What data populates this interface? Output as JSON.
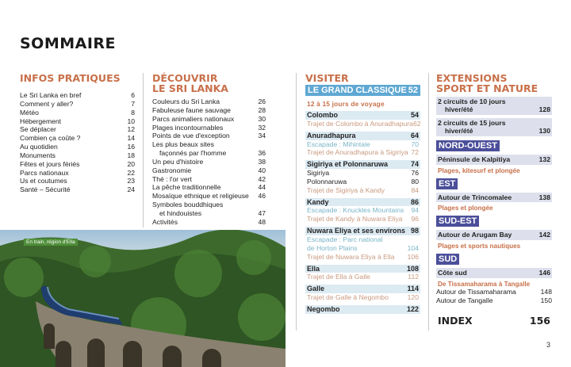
{
  "title": "SOMMAIRE",
  "infos": {
    "heading": "INFOS PRATIQUES",
    "items": [
      {
        "label": "Le Sri Lanka en bref",
        "page": "6"
      },
      {
        "label": "Comment y aller?",
        "page": "7"
      },
      {
        "label": "Météo",
        "page": "8"
      },
      {
        "label": "Hébergement",
        "page": "10"
      },
      {
        "label": "Se déplacer",
        "page": "12"
      },
      {
        "label": "Combien ça coûte ?",
        "page": "14"
      },
      {
        "label": "Au quotidien",
        "page": "16"
      },
      {
        "label": "Monuments",
        "page": "18"
      },
      {
        "label": "Fêtes et jours fériés",
        "page": "20"
      },
      {
        "label": "Parcs nationaux",
        "page": "22"
      },
      {
        "label": "Us et coutumes",
        "page": "23"
      },
      {
        "label": "Santé – Sécurité",
        "page": "24"
      }
    ]
  },
  "decouvrir": {
    "heading_1": "DÉCOUVRIR",
    "heading_2": "LE SRI LANKA",
    "items": [
      {
        "label": "Couleurs du Sri Lanka",
        "page": "26"
      },
      {
        "label": "Fabuleuse faune sauvage",
        "page": "28"
      },
      {
        "label": "Parcs animaliers nationaux",
        "page": "30"
      },
      {
        "label": "Plages incontournables",
        "page": "32"
      },
      {
        "label": "Points de vue d'exception",
        "page": "34"
      },
      {
        "label": "Les plus beaux sites",
        "page": ""
      },
      {
        "label": "façonnés par l'homme",
        "page": "36",
        "indent": true
      },
      {
        "label": "Un peu d'histoire",
        "page": "38"
      },
      {
        "label": "Gastronomie",
        "page": "40"
      },
      {
        "label": "Thé : l'or vert",
        "page": "42"
      },
      {
        "label": "La pêche traditionnelle",
        "page": "44"
      },
      {
        "label": "Mosaïque ethnique et religieuse",
        "page": "46"
      },
      {
        "label": "Symboles bouddhiques",
        "page": ""
      },
      {
        "label": "et hindouistes",
        "page": "47",
        "indent": true
      },
      {
        "label": "Activités",
        "page": "48"
      }
    ]
  },
  "visiter": {
    "heading": "VISITER",
    "band": {
      "label": "LE GRAND CLASSIQUE",
      "page": "52"
    },
    "subtitle": "12 à 15 jours de voyage",
    "blocks": [
      {
        "label": "Colombo",
        "page": "54",
        "items": [
          {
            "label": "Trajet de Colombo à Anuradhapura",
            "page": "62",
            "kind": "link"
          }
        ]
      },
      {
        "label": "Anuradhapura",
        "page": "64",
        "items": [
          {
            "label": "Escapade : Mihintale",
            "page": "70",
            "kind": "esc"
          },
          {
            "label": "Trajet de Anuradhapura à Sigiriya",
            "page": "72",
            "kind": "link"
          }
        ]
      },
      {
        "label": "Sigiriya et Polonnaruwa",
        "page": "74",
        "items": [
          {
            "label": "Sigiriya",
            "page": "76",
            "kind": "plain"
          },
          {
            "label": "Polonnaruwa",
            "page": "80",
            "kind": "plain"
          },
          {
            "label": "Trajet de Sigiriya à Kandy",
            "page": "84",
            "kind": "link"
          }
        ]
      },
      {
        "label": "Kandy",
        "page": "86",
        "items": [
          {
            "label": "Escapade : Knuckles Mountains",
            "page": "94",
            "kind": "esc"
          },
          {
            "label": "Trajet de Kandy à Nuwara Eliya",
            "page": "96",
            "kind": "link"
          }
        ]
      },
      {
        "label": "Nuwara Eliya et ses environs",
        "page": "98",
        "items": [
          {
            "label": "Escapade : Parc national",
            "page": "",
            "kind": "esc"
          },
          {
            "label": "de Horton Plains",
            "page": "104",
            "kind": "esc",
            "indent": true
          },
          {
            "label": "Trajet de Nuwara Eliya à Ella",
            "page": "106",
            "kind": "link"
          }
        ]
      },
      {
        "label": "Ella",
        "page": "108",
        "items": [
          {
            "label": "Trajet de Ella à Galle",
            "page": "112",
            "kind": "link"
          }
        ]
      },
      {
        "label": "Galle",
        "page": "114",
        "items": [
          {
            "label": "Trajet de Galle à Negombo",
            "page": "120",
            "kind": "link"
          }
        ]
      },
      {
        "label": "Negombo",
        "page": "122",
        "items": []
      }
    ]
  },
  "extensions": {
    "heading_1": "EXTENSIONS",
    "heading_2": "SPORT ET NATURE",
    "circuits": [
      {
        "line1": "2 circuits de 10 jours",
        "line2": "hiver/été",
        "page": "128"
      },
      {
        "line1": "2 circuits de 15 jours",
        "line2": "hiver/été",
        "page": "130"
      }
    ],
    "regions": [
      {
        "name": "NORD-OUEST",
        "label": "Péninsule de Kalpitiya",
        "page": "132",
        "sub": "Plages, kitesurf et plongée",
        "items": []
      },
      {
        "name": "EST",
        "label": "Autour de Trincomalee",
        "page": "138",
        "sub": "Plages et plongée",
        "items": []
      },
      {
        "name": "SUD-EST",
        "label": "Autour de Arugam Bay",
        "page": "142",
        "sub": "Plages et sports nautiques",
        "items": []
      },
      {
        "name": "SUD",
        "label": "Côte sud",
        "page": "146",
        "sub": "De Tissamaharama à Tangalle",
        "items": [
          {
            "label": "Autour de Tissamaharama",
            "page": "148"
          },
          {
            "label": "Autour de Tangalle",
            "page": "150"
          }
        ]
      }
    ],
    "index": {
      "label": "INDEX",
      "page": "156"
    }
  },
  "photo": {
    "caption": "En train, région d'Ella"
  },
  "page_number": "3",
  "colors": {
    "heading": "#c8704a",
    "band_blue": "#5fa8d3",
    "row_blue": "#dceaf2",
    "region": "#4b4f9a",
    "row_lavender": "#dde0ec"
  }
}
